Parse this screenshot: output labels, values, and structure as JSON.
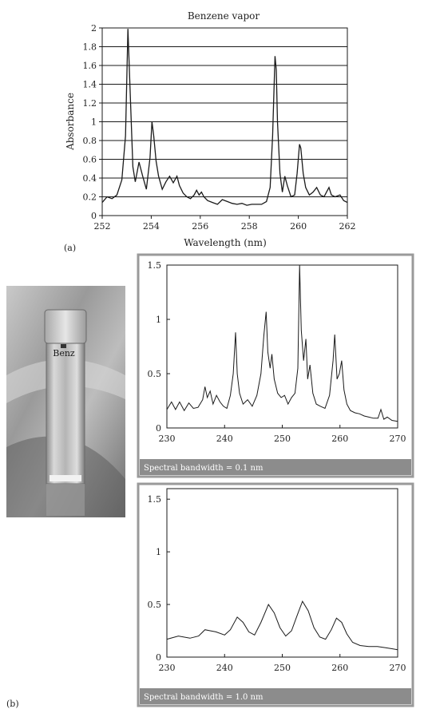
{
  "panel_labels": {
    "a": "(a)",
    "b": "(b)"
  },
  "photo": {
    "label": "Benz"
  },
  "colors": {
    "line": "#1a1a1a",
    "gridline": "#1a1a1a",
    "caption_bar": "#8c8c8c",
    "frame": "#9a9a9a"
  },
  "chart_data": [
    {
      "id": "a",
      "type": "line",
      "title": "Benzene vapor",
      "xlabel": "Wavelength (nm)",
      "ylabel": "Absorbance",
      "xlim": [
        252,
        262
      ],
      "ylim": [
        0,
        2
      ],
      "xticks": [
        252,
        254,
        256,
        258,
        260,
        262
      ],
      "yticks": [
        0,
        0.2,
        0.4,
        0.6,
        0.8,
        1,
        1.2,
        1.4,
        1.6,
        1.8,
        2
      ],
      "xtick_labels": [
        "252",
        "254",
        "256",
        "258",
        "260",
        "262"
      ],
      "ytick_labels": [
        "0",
        "0.2",
        "0.4",
        "0.6",
        "0.8",
        "1",
        "1.2",
        "1.4",
        "1.6",
        "1.8",
        "2"
      ],
      "grid": "horizontal",
      "series": [
        {
          "x": [
            252,
            252.2,
            252.4,
            252.6,
            252.8,
            252.95,
            253.05,
            253.15,
            253.25,
            253.35,
            253.5,
            253.65,
            253.8,
            253.95,
            254.03,
            254.1,
            254.2,
            254.3,
            254.45,
            254.6,
            254.75,
            254.9,
            255.05,
            255.15,
            255.3,
            255.45,
            255.6,
            255.75,
            255.85,
            255.95,
            256.05,
            256.15,
            256.3,
            256.5,
            256.7,
            256.9,
            257.1,
            257.3,
            257.5,
            257.7,
            257.9,
            258.1,
            258.3,
            258.5,
            258.7,
            258.85,
            258.95,
            259.05,
            259.1,
            259.15,
            259.25,
            259.35,
            259.45,
            259.55,
            259.7,
            259.85,
            259.95,
            260.05,
            260.1,
            260.2,
            260.3,
            260.45,
            260.6,
            260.75,
            260.9,
            261.05,
            261.15,
            261.25,
            261.35,
            261.5,
            261.7,
            261.85,
            262
          ],
          "y": [
            0.14,
            0.2,
            0.18,
            0.22,
            0.38,
            0.85,
            1.99,
            1.25,
            0.52,
            0.36,
            0.57,
            0.42,
            0.28,
            0.62,
            1.0,
            0.85,
            0.58,
            0.42,
            0.28,
            0.36,
            0.42,
            0.35,
            0.42,
            0.32,
            0.24,
            0.2,
            0.18,
            0.22,
            0.27,
            0.22,
            0.25,
            0.2,
            0.16,
            0.14,
            0.12,
            0.17,
            0.15,
            0.13,
            0.12,
            0.13,
            0.11,
            0.12,
            0.12,
            0.12,
            0.15,
            0.3,
            0.85,
            1.7,
            1.55,
            1.0,
            0.45,
            0.25,
            0.42,
            0.32,
            0.2,
            0.22,
            0.45,
            0.76,
            0.72,
            0.45,
            0.3,
            0.22,
            0.25,
            0.3,
            0.22,
            0.2,
            0.25,
            0.3,
            0.22,
            0.2,
            0.22,
            0.16,
            0.14
          ]
        }
      ]
    },
    {
      "id": "b1",
      "type": "line",
      "xlim": [
        230,
        270
      ],
      "ylim": [
        0,
        1.5
      ],
      "xticks": [
        230,
        240,
        250,
        260,
        270
      ],
      "yticks": [
        0,
        0.5,
        1,
        1.5
      ],
      "xtick_labels": [
        "230",
        "240",
        "250",
        "260",
        "270"
      ],
      "ytick_labels": [
        "0",
        "0.5",
        "1",
        "1.5"
      ],
      "annotation": "Spectral bandwidth = 0.1 nm",
      "series": [
        {
          "x": [
            230,
            230.8,
            231.5,
            232.2,
            233,
            233.8,
            234.6,
            235.4,
            236.2,
            236.6,
            237,
            237.5,
            238,
            238.6,
            239.2,
            239.8,
            240.4,
            241,
            241.5,
            241.9,
            242.2,
            242.6,
            243.2,
            244,
            244.8,
            245.6,
            246.3,
            246.8,
            247.2,
            247.5,
            247.9,
            248.2,
            248.6,
            249.2,
            249.8,
            250.4,
            251,
            251.6,
            252.2,
            252.7,
            253,
            253.3,
            253.7,
            254.1,
            254.4,
            254.8,
            255.3,
            255.9,
            256.6,
            257.4,
            258.2,
            258.8,
            259.1,
            259.5,
            259.9,
            260.3,
            260.7,
            261.2,
            261.8,
            262.6,
            263.4,
            264.2,
            265,
            265.8,
            266.6,
            267.1,
            267.6,
            268.2,
            269,
            270
          ],
          "y": [
            0.17,
            0.24,
            0.17,
            0.24,
            0.16,
            0.23,
            0.18,
            0.19,
            0.26,
            0.38,
            0.28,
            0.34,
            0.22,
            0.3,
            0.24,
            0.2,
            0.18,
            0.3,
            0.5,
            0.88,
            0.5,
            0.32,
            0.22,
            0.26,
            0.2,
            0.3,
            0.5,
            0.85,
            1.07,
            0.7,
            0.55,
            0.68,
            0.45,
            0.32,
            0.28,
            0.3,
            0.22,
            0.28,
            0.32,
            0.55,
            1.5,
            0.9,
            0.62,
            0.82,
            0.45,
            0.58,
            0.32,
            0.22,
            0.2,
            0.18,
            0.3,
            0.62,
            0.86,
            0.45,
            0.5,
            0.62,
            0.35,
            0.22,
            0.16,
            0.14,
            0.13,
            0.11,
            0.1,
            0.09,
            0.09,
            0.17,
            0.08,
            0.1,
            0.07,
            0.06
          ]
        }
      ]
    },
    {
      "id": "b2",
      "type": "line",
      "xlim": [
        230,
        270
      ],
      "ylim": [
        0,
        1.6
      ],
      "xticks": [
        230,
        240,
        250,
        260,
        270
      ],
      "yticks": [
        0,
        0.5,
        1,
        1.5
      ],
      "xtick_labels": [
        "230",
        "240",
        "250",
        "260",
        "270"
      ],
      "ytick_labels": [
        "0",
        "0.5",
        "1",
        "1.5"
      ],
      "annotation": "Spectral bandwidth = 1.0 nm",
      "series": [
        {
          "x": [
            230,
            232,
            234,
            235.5,
            236.6,
            237.5,
            238.5,
            240,
            241,
            242.2,
            243.2,
            244.2,
            245.2,
            246.3,
            247.6,
            248.6,
            249.6,
            250.6,
            251.6,
            252.6,
            253.5,
            254.5,
            255.5,
            256.5,
            257.5,
            258.5,
            259.4,
            260.3,
            261.2,
            262.2,
            263.5,
            265,
            266.5,
            267.8,
            269,
            270
          ],
          "y": [
            0.17,
            0.2,
            0.18,
            0.2,
            0.26,
            0.25,
            0.24,
            0.21,
            0.26,
            0.38,
            0.33,
            0.24,
            0.21,
            0.33,
            0.5,
            0.42,
            0.28,
            0.2,
            0.25,
            0.4,
            0.53,
            0.44,
            0.28,
            0.19,
            0.17,
            0.26,
            0.37,
            0.33,
            0.22,
            0.14,
            0.11,
            0.1,
            0.1,
            0.09,
            0.08,
            0.07
          ]
        }
      ]
    }
  ]
}
